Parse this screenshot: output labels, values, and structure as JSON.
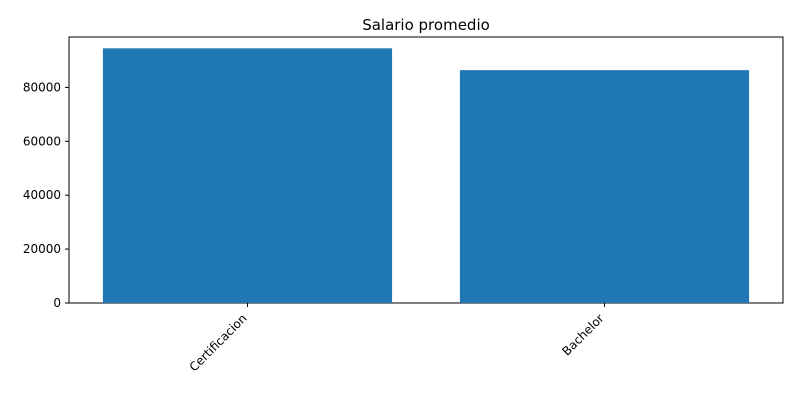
{
  "chart_data": {
    "type": "bar",
    "title": "Salario promedio",
    "xlabel": "",
    "ylabel": "",
    "categories": [
      "Certificacion",
      "Bachelor"
    ],
    "values": [
      94500,
      86400
    ],
    "ylim": [
      0,
      98700
    ],
    "yticks": [
      0,
      20000,
      40000,
      60000,
      80000
    ],
    "ytick_labels": [
      "0",
      "20000",
      "40000",
      "60000",
      "80000"
    ],
    "grid": false,
    "legend": "none",
    "bar_color": "#1f77b4"
  }
}
